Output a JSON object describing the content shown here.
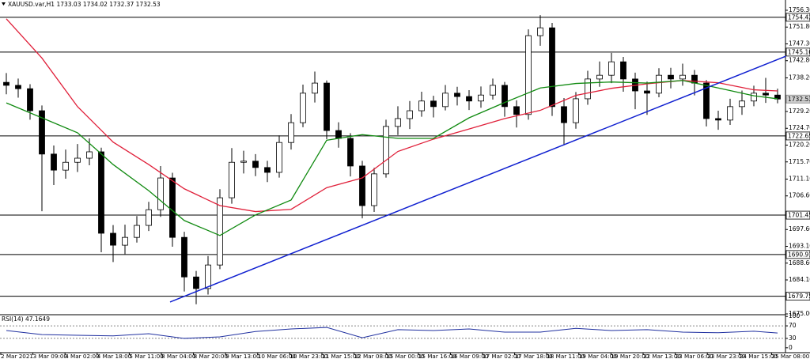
{
  "chart_data": {
    "type": "candlestick",
    "title": "XAUUSD.var,H1  1733.03 1734.02 1732.37 1732.53",
    "open": [
      1737.0,
      1736.2,
      1735.3,
      1729.4,
      1717.8,
      1713.5,
      1715.6,
      1716.7,
      1718.4,
      1696.6,
      1693.4,
      1695.5,
      1698.7,
      1702.9,
      1711.4,
      1695.5,
      1684.9,
      1681.8,
      1688.1,
      1706.1,
      1715.6,
      1715.9,
      1714.2,
      1712.9,
      1720.9,
      1726.2,
      1734.1,
      1736.8,
      1724.1,
      1722.0,
      1714.6,
      1704.0,
      1712.5,
      1725.2,
      1727.3,
      1729.4,
      1732.0,
      1730.5,
      1734.1,
      1733.2,
      1732.0,
      1733.6,
      1736.2,
      1730.5,
      1728.4,
      1749.5,
      1751.6,
      1730.5,
      1726.2,
      1732.6,
      1737.9,
      1738.9,
      1742.5,
      1737.9,
      1734.7,
      1734.1,
      1738.9,
      1737.9,
      1738.9,
      1736.8,
      1727.3,
      1726.9,
      1730.5,
      1732.0,
      1734.1,
      1733.6
    ],
    "high": [
      1739.5,
      1738.0,
      1736.5,
      1730.8,
      1720.1,
      1719.0,
      1720.5,
      1722.0,
      1719.5,
      1698.8,
      1698.9,
      1701.2,
      1705.0,
      1714.6,
      1712.8,
      1697.0,
      1686.5,
      1690.5,
      1708.4,
      1719.4,
      1718.7,
      1717.8,
      1716.0,
      1722.8,
      1728.5,
      1736.4,
      1739.9,
      1737.5,
      1726.3,
      1723.4,
      1716.0,
      1714.1,
      1727.0,
      1730.6,
      1732.0,
      1734.5,
      1733.4,
      1736.3,
      1735.8,
      1734.9,
      1735.9,
      1738.0,
      1737.1,
      1732.2,
      1751.2,
      1755.0,
      1752.9,
      1732.8,
      1734.4,
      1740.1,
      1742.6,
      1744.9,
      1743.8,
      1739.6,
      1737.2,
      1740.8,
      1740.9,
      1742.0,
      1740.3,
      1737.6,
      1729.4,
      1732.6,
      1734.8,
      1736.1,
      1738.2,
      1735.3
    ],
    "low": [
      1733.8,
      1732.9,
      1727.0,
      1702.5,
      1709.5,
      1711.2,
      1713.0,
      1714.8,
      1691.5,
      1688.9,
      1691.0,
      1694.1,
      1697.2,
      1701.0,
      1693.0,
      1681.0,
      1677.6,
      1680.2,
      1687.0,
      1704.5,
      1712.6,
      1711.9,
      1710.3,
      1711.5,
      1719.0,
      1725.0,
      1731.6,
      1721.8,
      1719.5,
      1711.8,
      1700.6,
      1702.3,
      1711.5,
      1722.9,
      1724.5,
      1727.8,
      1727.6,
      1729.5,
      1730.8,
      1729.6,
      1730.2,
      1732.4,
      1727.8,
      1724.9,
      1727.0,
      1746.8,
      1728.0,
      1720.3,
      1724.6,
      1731.0,
      1735.8,
      1736.8,
      1734.5,
      1729.8,
      1728.3,
      1733.0,
      1735.4,
      1736.1,
      1733.5,
      1725.2,
      1724.3,
      1725.6,
      1728.3,
      1730.6,
      1731.5,
      1731.4
    ],
    "close": [
      1736.2,
      1735.3,
      1729.4,
      1717.8,
      1713.5,
      1715.6,
      1716.7,
      1718.4,
      1696.6,
      1693.4,
      1695.5,
      1698.7,
      1702.9,
      1711.4,
      1695.5,
      1684.9,
      1681.8,
      1688.1,
      1706.1,
      1715.6,
      1715.9,
      1714.2,
      1712.9,
      1720.9,
      1726.2,
      1734.1,
      1736.8,
      1724.1,
      1722.0,
      1714.6,
      1704.0,
      1712.5,
      1725.2,
      1727.3,
      1729.4,
      1732.0,
      1730.5,
      1734.1,
      1733.2,
      1732.0,
      1733.6,
      1736.2,
      1730.5,
      1728.4,
      1749.5,
      1751.6,
      1730.5,
      1726.2,
      1732.6,
      1737.9,
      1738.9,
      1742.5,
      1737.9,
      1734.7,
      1734.1,
      1738.9,
      1737.9,
      1738.9,
      1736.8,
      1727.3,
      1726.9,
      1730.5,
      1732.0,
      1734.1,
      1733.6,
      1732.53
    ],
    "overlays": [
      {
        "color": "#e0203a",
        "x": [
          0,
          3,
          6,
          9,
          12,
          15,
          18,
          21,
          24,
          27,
          30,
          33,
          36,
          39,
          42,
          45,
          48,
          51,
          54,
          57,
          60,
          63,
          65
        ],
        "values": [
          1754,
          1743.5,
          1730.5,
          1721,
          1715,
          1708.5,
          1704,
          1702.4,
          1703,
          1708.8,
          1711.4,
          1718.5,
          1721.8,
          1724.5,
          1727.3,
          1729.5,
          1733.5,
          1735.4,
          1736.6,
          1737.5,
          1736.9,
          1735,
          1734.7
        ]
      },
      {
        "color": "#108a10",
        "x": [
          0,
          3,
          6,
          9,
          12,
          15,
          18,
          21,
          24,
          27,
          30,
          33,
          36,
          39,
          42,
          45,
          48,
          51,
          54,
          57,
          60,
          63,
          65
        ],
        "values": [
          1731.5,
          1727.5,
          1723.5,
          1715,
          1708,
          1700,
          1696,
          1701.5,
          1705.5,
          1721.5,
          1723,
          1722,
          1722,
          1727.5,
          1731.6,
          1735.5,
          1736.7,
          1737.1,
          1736.8,
          1737.5,
          1735.5,
          1733.4,
          1732.6
        ]
      }
    ],
    "trendline": {
      "color": "#1020d0",
      "x": [
        13.8,
        65.7
      ],
      "values": [
        1678.2,
        1744.0
      ]
    },
    "levels": [
      1754.42,
      {
        "value": 1745.1,
        "label": "1745.10"
      },
      1722.65,
      1701.45,
      1690.91,
      1679.75
    ],
    "current_price": 1732.53,
    "ylim": [
      1675,
      1758.2
    ],
    "yticks": [
      {
        "value": 1756.3,
        "label": "1756.30"
      },
      {
        "value": 1751.8,
        "label": "1751.80"
      },
      {
        "value": 1747.3,
        "label": "1747.30"
      },
      {
        "value": 1742.8,
        "label": "1742.80"
      },
      {
        "value": 1738.2,
        "label": "1738.20"
      },
      {
        "value": 1729.2,
        "label": "1729.20"
      },
      {
        "value": 1724.7,
        "label": "1724.70"
      },
      {
        "value": 1720.2,
        "label": "1720.20"
      },
      {
        "value": 1715.7,
        "label": "1715.70"
      },
      {
        "value": 1711.1,
        "label": "1711.10"
      },
      {
        "value": 1706.6,
        "label": "1706.60"
      },
      {
        "value": 1697.6,
        "label": "1697.60"
      },
      {
        "value": 1693.1,
        "label": "1693.10"
      },
      {
        "value": 1688.6,
        "label": "1688.60"
      },
      {
        "value": 1684.1,
        "label": "1684.10"
      },
      {
        "value": 1675,
        "label": "1675.00"
      }
    ],
    "x_labels": [
      "2 Mar 2021",
      "3 Mar 09:00",
      "4 Mar 02:00",
      "4 Mar 18:00",
      "5 Mar 11:00",
      "8 Mar 04:00",
      "8 Mar 20:00",
      "9 Mar 13:00",
      "10 Mar 06:00",
      "10 Mar 23:00",
      "11 Mar 15:00",
      "12 Mar 08:00",
      "15 Mar 00:00",
      "15 Mar 16:00",
      "16 Mar 09:00",
      "17 Mar 02:00",
      "17 Mar 18:00",
      "18 Mar 11:00",
      "19 Mar 04:00",
      "19 Mar 20:00",
      "22 Mar 13:00",
      "23 Mar 06:00",
      "23 Mar 23:00",
      "24 Mar 15:00",
      "25 Mar 08:00"
    ],
    "rsi": {
      "title": "RSI(14) 47.1649",
      "color": "#2030a0",
      "x": [
        0,
        3,
        6,
        9,
        12,
        15,
        18,
        21,
        24,
        27,
        30,
        33,
        36,
        39,
        42,
        45,
        48,
        51,
        54,
        57,
        60,
        63,
        65
      ],
      "values": [
        55,
        42,
        40,
        38,
        45,
        30,
        35,
        52,
        60,
        65,
        32,
        58,
        55,
        60,
        50,
        50,
        62,
        55,
        58,
        50,
        48,
        53,
        47.2
      ],
      "ylim": [
        -8,
        103
      ],
      "yticks": [
        100,
        70,
        30,
        0
      ],
      "levels": [
        70,
        30
      ]
    }
  }
}
